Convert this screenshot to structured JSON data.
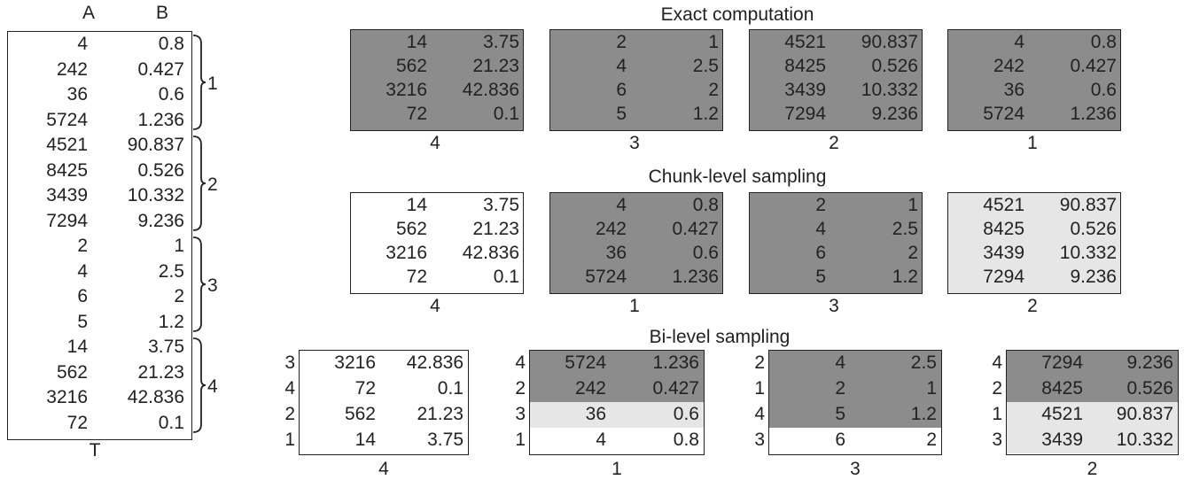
{
  "table_t": {
    "col_headers": [
      "A",
      "B"
    ],
    "name": "T",
    "rows": [
      [
        "4",
        "0.8"
      ],
      [
        "242",
        "0.427"
      ],
      [
        "36",
        "0.6"
      ],
      [
        "5724",
        "1.236"
      ],
      [
        "4521",
        "90.837"
      ],
      [
        "8425",
        "0.526"
      ],
      [
        "3439",
        "10.332"
      ],
      [
        "7294",
        "9.236"
      ],
      [
        "2",
        "1"
      ],
      [
        "4",
        "2.5"
      ],
      [
        "6",
        "2"
      ],
      [
        "5",
        "1.2"
      ],
      [
        "14",
        "3.75"
      ],
      [
        "562",
        "21.23"
      ],
      [
        "3216",
        "42.836"
      ],
      [
        "72",
        "0.1"
      ]
    ],
    "chunk_labels": [
      "1",
      "2",
      "3",
      "4"
    ]
  },
  "exact": {
    "title": "Exact computation",
    "chunks": [
      {
        "label": "4",
        "shade": "dark",
        "rows": [
          [
            "14",
            "3.75"
          ],
          [
            "562",
            "21.23"
          ],
          [
            "3216",
            "42.836"
          ],
          [
            "72",
            "0.1"
          ]
        ]
      },
      {
        "label": "3",
        "shade": "dark",
        "rows": [
          [
            "2",
            "1"
          ],
          [
            "4",
            "2.5"
          ],
          [
            "6",
            "2"
          ],
          [
            "5",
            "1.2"
          ]
        ]
      },
      {
        "label": "2",
        "shade": "dark",
        "rows": [
          [
            "4521",
            "90.837"
          ],
          [
            "8425",
            "0.526"
          ],
          [
            "3439",
            "10.332"
          ],
          [
            "7294",
            "9.236"
          ]
        ]
      },
      {
        "label": "1",
        "shade": "dark",
        "rows": [
          [
            "4",
            "0.8"
          ],
          [
            "242",
            "0.427"
          ],
          [
            "36",
            "0.6"
          ],
          [
            "5724",
            "1.236"
          ]
        ]
      }
    ]
  },
  "chunk_level": {
    "title": "Chunk-level sampling",
    "chunks": [
      {
        "label": "4",
        "shade": "white",
        "rows": [
          [
            "14",
            "3.75"
          ],
          [
            "562",
            "21.23"
          ],
          [
            "3216",
            "42.836"
          ],
          [
            "72",
            "0.1"
          ]
        ]
      },
      {
        "label": "1",
        "shade": "dark",
        "rows": [
          [
            "4",
            "0.8"
          ],
          [
            "242",
            "0.427"
          ],
          [
            "36",
            "0.6"
          ],
          [
            "5724",
            "1.236"
          ]
        ]
      },
      {
        "label": "3",
        "shade": "dark",
        "rows": [
          [
            "2",
            "1"
          ],
          [
            "4",
            "2.5"
          ],
          [
            "6",
            "2"
          ],
          [
            "5",
            "1.2"
          ]
        ]
      },
      {
        "label": "2",
        "shade": "light",
        "rows": [
          [
            "4521",
            "90.837"
          ],
          [
            "8425",
            "0.526"
          ],
          [
            "3439",
            "10.332"
          ],
          [
            "7294",
            "9.236"
          ]
        ]
      }
    ]
  },
  "bi_level": {
    "title": "Bi-level sampling",
    "chunks": [
      {
        "label": "4",
        "rows": [
          {
            "id": "3",
            "a": "3216",
            "b": "42.836",
            "shade": "white"
          },
          {
            "id": "4",
            "a": "72",
            "b": "0.1",
            "shade": "white"
          },
          {
            "id": "2",
            "a": "562",
            "b": "21.23",
            "shade": "white"
          },
          {
            "id": "1",
            "a": "14",
            "b": "3.75",
            "shade": "white"
          }
        ]
      },
      {
        "label": "1",
        "rows": [
          {
            "id": "4",
            "a": "5724",
            "b": "1.236",
            "shade": "dark"
          },
          {
            "id": "2",
            "a": "242",
            "b": "0.427",
            "shade": "dark"
          },
          {
            "id": "3",
            "a": "36",
            "b": "0.6",
            "shade": "light"
          },
          {
            "id": "1",
            "a": "4",
            "b": "0.8",
            "shade": "white"
          }
        ]
      },
      {
        "label": "3",
        "rows": [
          {
            "id": "2",
            "a": "4",
            "b": "2.5",
            "shade": "dark"
          },
          {
            "id": "1",
            "a": "2",
            "b": "1",
            "shade": "dark"
          },
          {
            "id": "4",
            "a": "5",
            "b": "1.2",
            "shade": "dark"
          },
          {
            "id": "3",
            "a": "6",
            "b": "2",
            "shade": "white"
          }
        ]
      },
      {
        "label": "2",
        "rows": [
          {
            "id": "4",
            "a": "7294",
            "b": "9.236",
            "shade": "dark"
          },
          {
            "id": "2",
            "a": "8425",
            "b": "0.526",
            "shade": "dark"
          },
          {
            "id": "1",
            "a": "4521",
            "b": "90.837",
            "shade": "light"
          },
          {
            "id": "3",
            "a": "3439",
            "b": "10.332",
            "shade": "light"
          }
        ]
      }
    ]
  },
  "colors": {
    "dark": "#8c8c8c",
    "light": "#e6e6e6",
    "white": "#ffffff",
    "border": "#222222"
  }
}
